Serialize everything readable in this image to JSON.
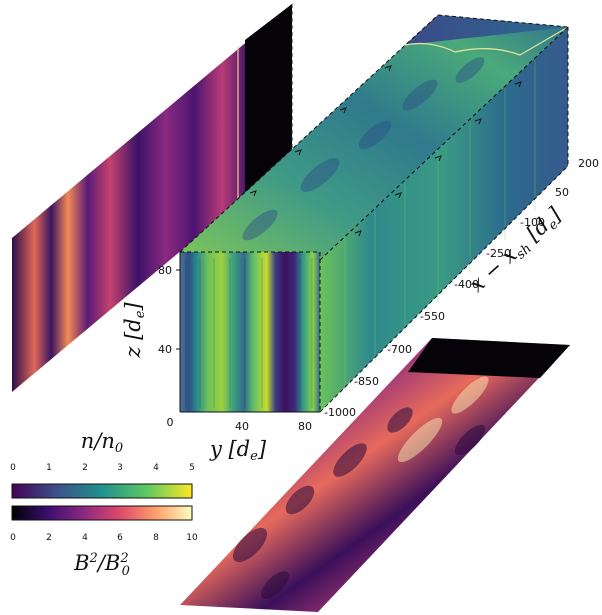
{
  "axes": {
    "y_label": "y [d_e]",
    "z_label": "z [d_e]",
    "x_label": "x − x_sh [d_e]",
    "y_ticks": [
      "0",
      "40",
      "80"
    ],
    "z_ticks": [
      "40",
      "80"
    ],
    "x_ticks": [
      "200",
      "50",
      "-100",
      "-250",
      "-400",
      "-550",
      "-700",
      "-850",
      "-1000"
    ]
  },
  "colorbars": {
    "density": {
      "label": "n/n0",
      "colormap": "viridis",
      "ticks": [
        "0",
        "1",
        "2",
        "3",
        "4",
        "5"
      ]
    },
    "magnetic": {
      "label": "B²/B0²",
      "colormap": "magma",
      "ticks": [
        "0",
        "2",
        "4",
        "6",
        "8",
        "10"
      ]
    }
  },
  "colors": {
    "viridis": [
      "#440154",
      "#3b528b",
      "#21918c",
      "#5ec962",
      "#fde725"
    ],
    "magma": [
      "#000004",
      "#3b0f70",
      "#8c2981",
      "#de4968",
      "#fe9f6d",
      "#fcfdbf"
    ]
  }
}
